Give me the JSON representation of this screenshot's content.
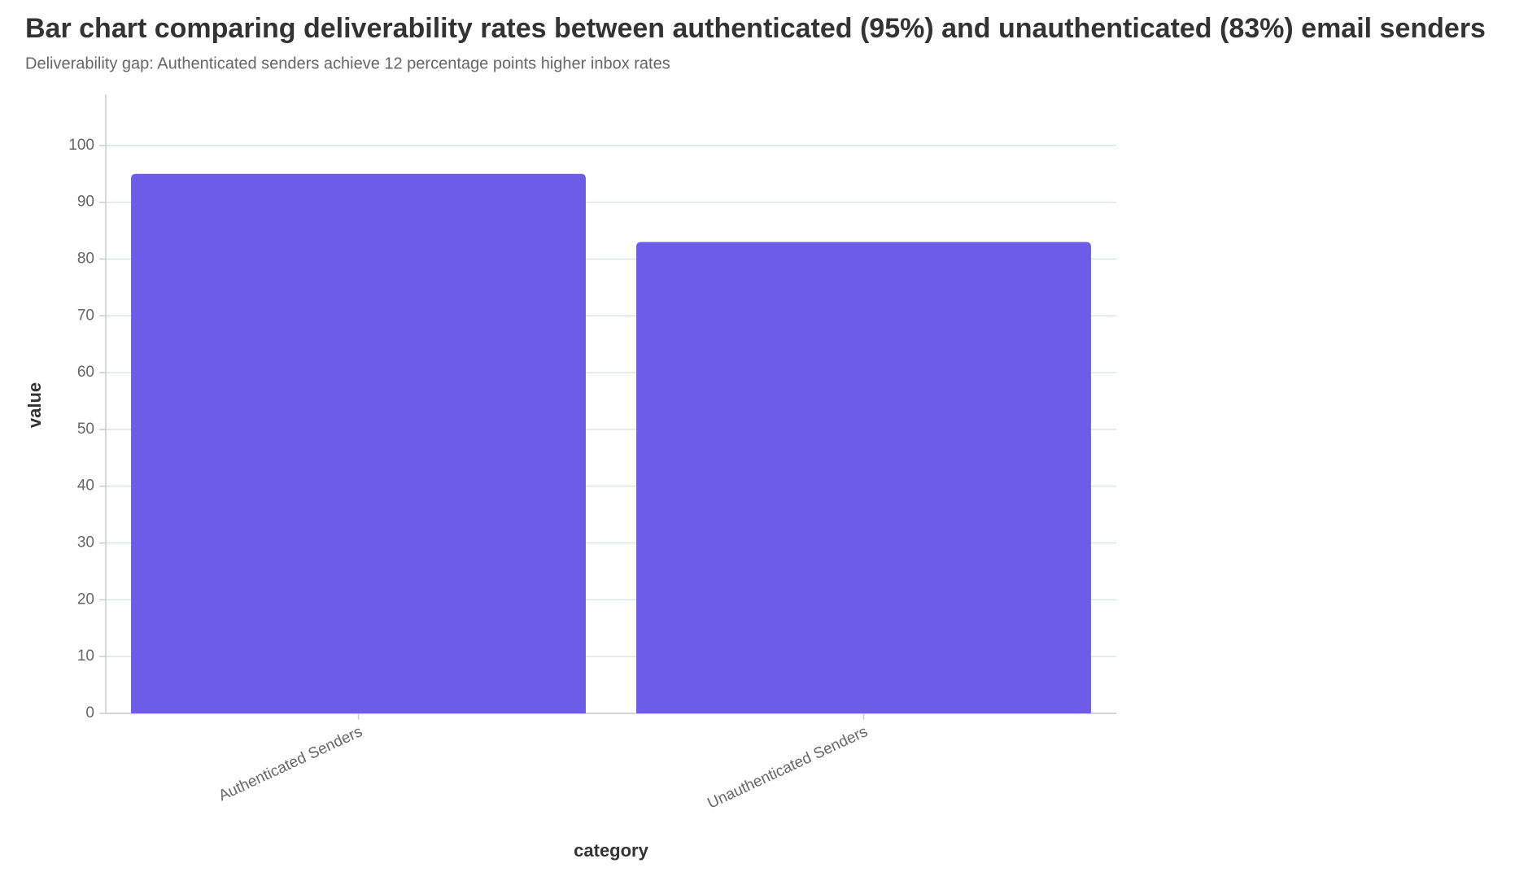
{
  "chart_data": {
    "type": "bar",
    "title": "Bar chart comparing deliverability rates between authenticated (95%) and unauthenticated (83%) email senders",
    "subtitle": "Deliverability gap: Authenticated senders achieve 12 percentage points higher inbox rates",
    "x_label": "category",
    "y_label": "value",
    "categories": [
      "Authenticated Senders",
      "Unauthenticated Senders"
    ],
    "values": [
      95,
      83
    ],
    "color": "#6c5ce7",
    "ylim": [
      0,
      109
    ],
    "yticks": [
      0,
      10,
      20,
      30,
      40,
      50,
      60,
      70,
      80,
      90,
      100
    ],
    "grid": true
  }
}
